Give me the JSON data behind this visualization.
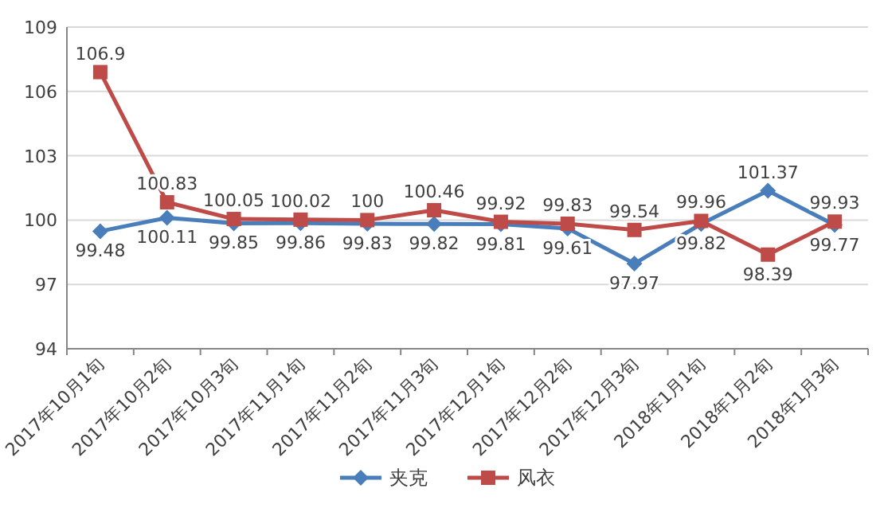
{
  "chart_data": {
    "type": "line",
    "categories": [
      "2017年10月1旬",
      "2017年10月2旬",
      "2017年10月3旬",
      "2017年11月1旬",
      "2017年11月2旬",
      "2017年11月3旬",
      "2017年12月1旬",
      "2017年12月2旬",
      "2017年12月3旬",
      "2018年1月1旬",
      "2018年1月2旬",
      "2018年1月3旬"
    ],
    "series": [
      {
        "name": "夹克",
        "color": "#4a7ebb",
        "marker": "diamond",
        "values": [
          99.48,
          100.11,
          99.85,
          99.86,
          99.83,
          99.82,
          99.81,
          99.61,
          97.97,
          99.82,
          101.37,
          99.77
        ]
      },
      {
        "name": "风衣",
        "color": "#be4b48",
        "marker": "square",
        "values": [
          106.9,
          100.83,
          100.05,
          100.02,
          100,
          100.46,
          99.92,
          99.83,
          99.54,
          99.96,
          98.39,
          99.93
        ]
      }
    ],
    "ylim": [
      94,
      109
    ],
    "yticks": [
      94,
      97,
      100,
      103,
      106,
      109
    ],
    "grid": "y",
    "legend": "bottom",
    "data_labels": true
  }
}
